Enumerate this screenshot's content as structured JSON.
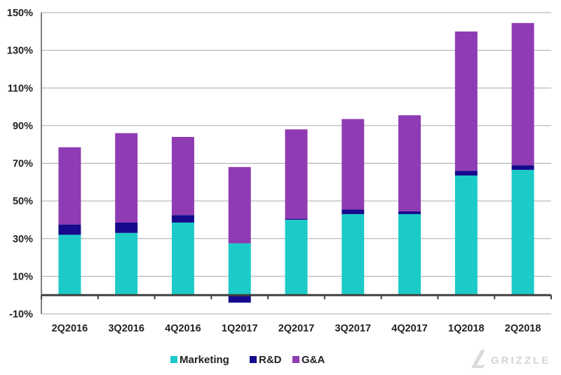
{
  "chart_data": {
    "type": "bar",
    "stacked": true,
    "categories": [
      "2Q2016",
      "3Q2016",
      "4Q2016",
      "1Q2017",
      "2Q2017",
      "3Q2017",
      "4Q2017",
      "1Q2018",
      "2Q2018"
    ],
    "series": [
      {
        "name": "Marketing",
        "color": "#1ccbc8",
        "values": [
          32,
          33,
          38.5,
          27.5,
          40,
          43,
          43,
          63.5,
          66.5
        ]
      },
      {
        "name": "R&D",
        "color": "#150a8c",
        "values": [
          5.5,
          5.5,
          4,
          -4,
          0.5,
          2.5,
          1.5,
          2.5,
          2.5
        ]
      },
      {
        "name": "G&A",
        "color": "#8f3bb3",
        "values": [
          41,
          47.5,
          41.5,
          40.5,
          47.5,
          48,
          51,
          74,
          75.5
        ]
      }
    ],
    "title": "",
    "xlabel": "",
    "ylabel": "",
    "ylim": [
      -10,
      150
    ],
    "yticks": [
      -10,
      10,
      30,
      50,
      70,
      90,
      110,
      130,
      150
    ],
    "ytick_labels": [
      "-10%",
      "10%",
      "30%",
      "50%",
      "70%",
      "90%",
      "110%",
      "130%",
      "150%"
    ],
    "grid": true,
    "legend": "bottom"
  },
  "watermark": {
    "text": "GRIZZLE"
  }
}
